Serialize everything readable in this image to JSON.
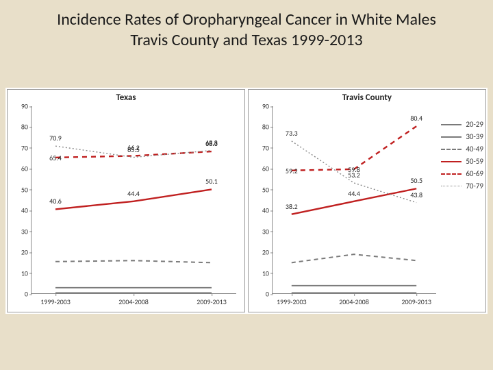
{
  "title_line1": "Incidence Rates of Oropharyngeal Cancer in White Males",
  "title_line2": "Travis County and Texas 1999-2013",
  "x_categories": [
    "1999-2003",
    "2004-2008",
    "2009-2013"
  ],
  "y": {
    "min": 0,
    "max": 90,
    "step": 10
  },
  "series_style": {
    "20-29": {
      "color": "#7a7a7a",
      "width": 2,
      "dash": ""
    },
    "30-39": {
      "color": "#7a7a7a",
      "width": 2,
      "dash": ""
    },
    "40-49": {
      "color": "#7a7a7a",
      "width": 2,
      "dash": "6,5"
    },
    "50-59": {
      "color": "#c02020",
      "width": 2.4,
      "dash": ""
    },
    "60-69": {
      "color": "#c02020",
      "width": 2.4,
      "dash": "7,6"
    },
    "70-79": {
      "color": "#8a8a8a",
      "width": 1.4,
      "dash": "2,3"
    }
  },
  "legend_order": [
    "20-29",
    "30-39",
    "40-49",
    "50-59",
    "60-69",
    "70-79"
  ],
  "panels": [
    {
      "title": "Texas",
      "has_legend": false,
      "label_offsets": {
        "65.4": [
          0,
          12
        ]
      },
      "series": {
        "20-29": [
          0.5,
          0.5,
          0.5
        ],
        "30-39": [
          3,
          3,
          3
        ],
        "40-49": [
          15.5,
          16,
          15
        ],
        "50-59": [
          40.6,
          44.4,
          50.1
        ],
        "60-69": [
          65.4,
          66.2,
          68.3
        ],
        "70-79": [
          70.9,
          65.5,
          68.8
        ]
      },
      "labels": {
        "50-59": [
          40.6,
          44.4,
          50.1
        ],
        "60-69": [
          65.4,
          66.2,
          68.3
        ],
        "70-79": [
          70.9,
          65.5,
          68.8
        ]
      }
    },
    {
      "title": "Travis County",
      "has_legend": true,
      "label_offsets": {
        "59.2": [
          0,
          12
        ],
        "59.8": [
          0,
          12
        ]
      },
      "series": {
        "20-29": [
          0.5,
          0.5,
          0.5
        ],
        "30-39": [
          4,
          4,
          4
        ],
        "40-49": [
          15,
          19,
          16
        ],
        "50-59": [
          38.2,
          44.4,
          50.5
        ],
        "60-69": [
          59.2,
          59.8,
          80.4
        ],
        "70-79": [
          73.3,
          53.2,
          43.8
        ]
      },
      "labels": {
        "50-59": [
          38.2,
          44.4,
          50.5
        ],
        "60-69": [
          59.2,
          59.8,
          80.4
        ],
        "70-79": [
          73.3,
          53.2,
          43.8
        ]
      }
    }
  ]
}
